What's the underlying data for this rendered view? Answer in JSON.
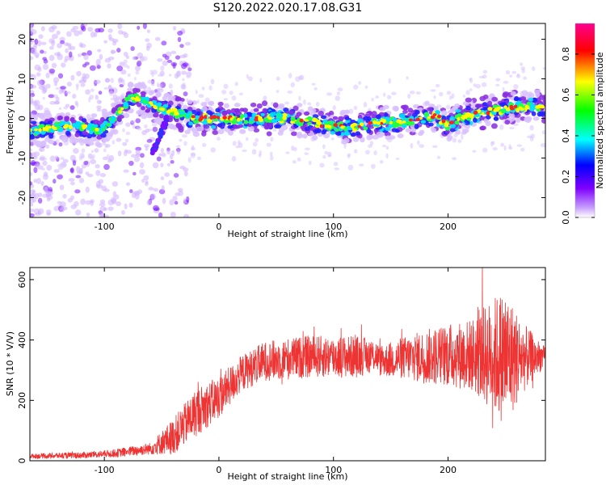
{
  "title": "S120.2022.020.17.08.G31",
  "chart_data": [
    {
      "type": "heatmap",
      "xlabel": "Height of straight line (km)",
      "ylabel": "Frequency (Hz)",
      "xlim": [
        -165,
        285
      ],
      "ylim": [
        -25,
        24
      ],
      "xticks": [
        -100,
        0,
        100,
        200
      ],
      "yticks": [
        -20,
        -10,
        0,
        10,
        20
      ],
      "colorbar": {
        "label": "Normalized spectral amplitude",
        "range": [
          0,
          0.95
        ],
        "ticks": [
          0.0,
          0.2,
          0.4,
          0.6,
          0.8
        ],
        "tick_labels": [
          "0.0",
          "0.2",
          "0.4",
          "0.6",
          "0.8"
        ],
        "colors": [
          "#ffffff",
          "#8000ff",
          "#0000ff",
          "#00ffff",
          "#00ff00",
          "#ffff00",
          "#ff0000",
          "#ff00a0"
        ]
      },
      "ridge": [
        {
          "x": -160,
          "y": -3
        },
        {
          "x": -140,
          "y": -2
        },
        {
          "x": -120,
          "y": -2
        },
        {
          "x": -105,
          "y": -3
        },
        {
          "x": -95,
          "y": -1
        },
        {
          "x": -85,
          "y": 2
        },
        {
          "x": -78,
          "y": 5
        },
        {
          "x": -70,
          "y": 5
        },
        {
          "x": -62,
          "y": 4
        },
        {
          "x": -55,
          "y": 3
        },
        {
          "x": -45,
          "y": 2
        },
        {
          "x": -35,
          "y": 1
        },
        {
          "x": -20,
          "y": 0
        },
        {
          "x": 0,
          "y": 0
        },
        {
          "x": 20,
          "y": 0
        },
        {
          "x": 40,
          "y": 0
        },
        {
          "x": 60,
          "y": 0
        },
        {
          "x": 80,
          "y": -1
        },
        {
          "x": 100,
          "y": -2
        },
        {
          "x": 120,
          "y": -2
        },
        {
          "x": 140,
          "y": -1
        },
        {
          "x": 160,
          "y": -1
        },
        {
          "x": 180,
          "y": 0
        },
        {
          "x": 190,
          "y": 1
        },
        {
          "x": 200,
          "y": -2
        },
        {
          "x": 210,
          "y": 0
        },
        {
          "x": 220,
          "y": 1
        },
        {
          "x": 240,
          "y": 2
        },
        {
          "x": 260,
          "y": 3
        },
        {
          "x": 285,
          "y": 3
        }
      ]
    },
    {
      "type": "line",
      "xlabel": "Height of straight line (km)",
      "ylabel": "SNR (10 * V/V)",
      "xlim": [
        -165,
        285
      ],
      "ylim": [
        0,
        640
      ],
      "xticks": [
        -100,
        0,
        100,
        200
      ],
      "yticks": [
        0,
        200,
        400,
        600
      ],
      "color": "#ee3333",
      "mean_curve": [
        {
          "x": -165,
          "y": 15
        },
        {
          "x": -120,
          "y": 18
        },
        {
          "x": -90,
          "y": 25
        },
        {
          "x": -60,
          "y": 40
        },
        {
          "x": -40,
          "y": 80
        },
        {
          "x": -20,
          "y": 160
        },
        {
          "x": 0,
          "y": 210
        },
        {
          "x": 20,
          "y": 290
        },
        {
          "x": 40,
          "y": 330
        },
        {
          "x": 80,
          "y": 345
        },
        {
          "x": 120,
          "y": 345
        },
        {
          "x": 138,
          "y": 350
        },
        {
          "x": 140,
          "y": 330
        },
        {
          "x": 160,
          "y": 340
        },
        {
          "x": 200,
          "y": 350
        },
        {
          "x": 240,
          "y": 350
        },
        {
          "x": 260,
          "y": 340
        },
        {
          "x": 285,
          "y": 345
        }
      ],
      "spread_curve": [
        {
          "x": -165,
          "y": 8
        },
        {
          "x": -100,
          "y": 12
        },
        {
          "x": -60,
          "y": 20
        },
        {
          "x": -40,
          "y": 60
        },
        {
          "x": -20,
          "y": 80
        },
        {
          "x": 20,
          "y": 60
        },
        {
          "x": 60,
          "y": 70
        },
        {
          "x": 120,
          "y": 70
        },
        {
          "x": 140,
          "y": 50
        },
        {
          "x": 180,
          "y": 90
        },
        {
          "x": 220,
          "y": 120
        },
        {
          "x": 250,
          "y": 230
        },
        {
          "x": 265,
          "y": 120
        },
        {
          "x": 285,
          "y": 30
        }
      ]
    }
  ]
}
